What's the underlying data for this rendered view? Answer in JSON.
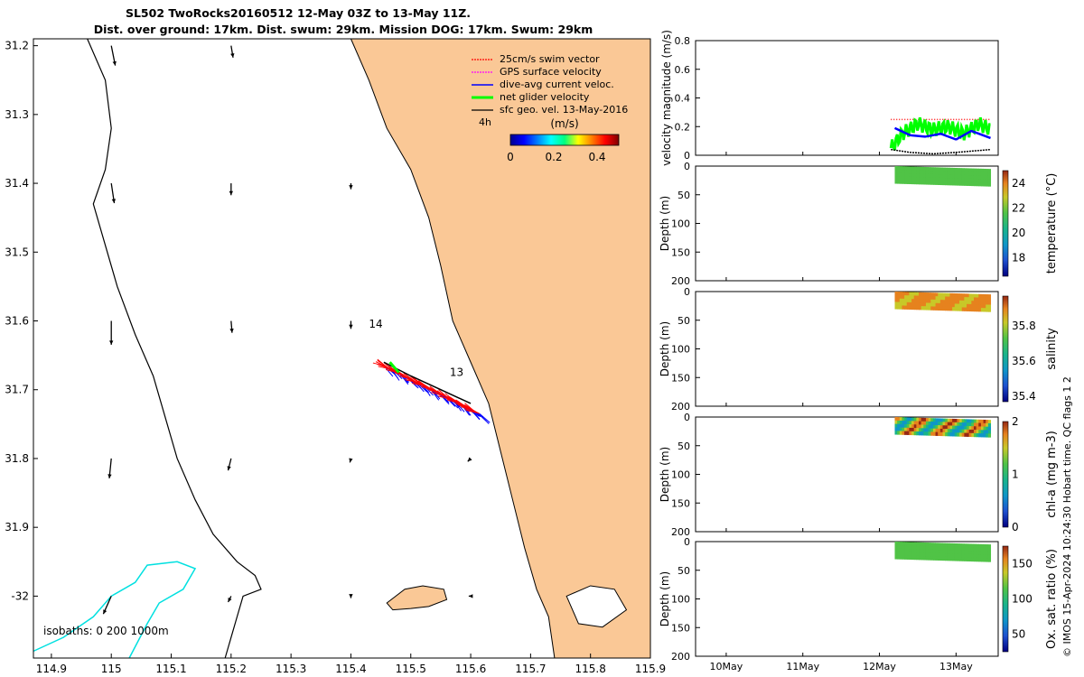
{
  "title": {
    "line1": "SL502 TwoRocks20160512 12-May 03Z to 13-May 11Z.",
    "line2": "Dist. over ground: 17km. Dist. swum: 29km. Mission DOG: 17km. Swum: 29km"
  },
  "colors": {
    "land": "#fac896",
    "swim": "#ff0000",
    "gps": "#ff00ff",
    "dive": "#0000ff",
    "net": "#00ff00",
    "sfc": "#000000",
    "isobath200": "#000000",
    "isobath1000": "#00e0e0"
  },
  "chart_data": [
    {
      "id": "map",
      "type": "scatter",
      "x_ticks": [
        "114.9",
        "115",
        "115.1",
        "115.2",
        "115.3",
        "115.4",
        "115.5",
        "115.6",
        "115.7",
        "115.8",
        "115.9"
      ],
      "y_ticks": [
        "31.2",
        "31.3",
        "31.4",
        "31.5",
        "31.6",
        "31.7",
        "31.8",
        "31.9",
        "-32"
      ],
      "xlim": [
        114.87,
        115.9
      ],
      "ylim": [
        31.19,
        32.09
      ],
      "legend": [
        {
          "label": "25cm/s swim vector",
          "color": "#ff0000"
        },
        {
          "label": "GPS surface velocity",
          "color": "#ff00ff"
        },
        {
          "label": "dive-avg current veloc.",
          "color": "#0000ff"
        },
        {
          "label": "net glider velocity",
          "color": "#00ff00"
        },
        {
          "label": "sfc geo. vel. 13-May-2016",
          "color": "#000000"
        }
      ],
      "legend_placement": "top-right",
      "speed_scale": {
        "label": "(m/s)",
        "ticks": [
          "0",
          "0.2",
          "0.4"
        ],
        "range": [
          0,
          0.5
        ],
        "note": "4h"
      },
      "annotations": [
        {
          "text": "14",
          "lon": 115.43,
          "lat": 31.61
        },
        {
          "text": "13",
          "lon": 115.565,
          "lat": 31.68
        }
      ],
      "isobath_label": "isobaths: 0   200  1000m",
      "sfc_vectors": [
        {
          "lon": 115.0,
          "lat": 31.2,
          "u": 0.2,
          "v": 1.0
        },
        {
          "lon": 115.2,
          "lat": 31.2,
          "u": 0.1,
          "v": 0.6
        },
        {
          "lon": 115.0,
          "lat": 31.4,
          "u": 0.15,
          "v": 1.0
        },
        {
          "lon": 115.2,
          "lat": 31.4,
          "u": 0.0,
          "v": 0.6
        },
        {
          "lon": 115.4,
          "lat": 31.4,
          "u": 0.0,
          "v": 0.3
        },
        {
          "lon": 115.0,
          "lat": 31.6,
          "u": 0.0,
          "v": 1.2
        },
        {
          "lon": 115.2,
          "lat": 31.6,
          "u": 0.05,
          "v": 0.6
        },
        {
          "lon": 115.4,
          "lat": 31.6,
          "u": 0.0,
          "v": 0.4
        },
        {
          "lon": 115.0,
          "lat": 31.8,
          "u": -0.1,
          "v": 1.0
        },
        {
          "lon": 115.2,
          "lat": 31.8,
          "u": -0.15,
          "v": 0.6
        },
        {
          "lon": 115.4,
          "lat": 31.8,
          "u": -0.05,
          "v": 0.2
        },
        {
          "lon": 115.6,
          "lat": 31.8,
          "u": -0.15,
          "v": 0.15
        },
        {
          "lon": 115.0,
          "lat": 32.0,
          "u": -0.4,
          "v": 0.9
        },
        {
          "lon": 115.2,
          "lat": 32.0,
          "u": -0.15,
          "v": 0.3
        },
        {
          "lon": 115.4,
          "lat": 32.0,
          "u": 0.0,
          "v": 0.1
        },
        {
          "lon": 115.6,
          "lat": 32.0,
          "u": -0.1,
          "v": 0.0
        }
      ]
    },
    {
      "id": "velocity",
      "type": "line",
      "ylabel": "velocity magnitude (m/s)",
      "y_ticks": [
        "0",
        "0.2",
        "0.4",
        "0.6",
        "0.8"
      ],
      "ylim": [
        0,
        0.8
      ],
      "series": [
        {
          "color": "#ff0000",
          "x": [
            12.15,
            13.45
          ],
          "y": [
            0.25,
            0.25
          ]
        },
        {
          "color": "#00ff00",
          "x": [
            12.15,
            12.3,
            12.5,
            12.7,
            12.9,
            13.1,
            13.3,
            13.45
          ],
          "y": [
            0.05,
            0.15,
            0.22,
            0.18,
            0.2,
            0.15,
            0.22,
            0.18
          ]
        },
        {
          "color": "#0000ff",
          "x": [
            12.2,
            12.4,
            12.6,
            12.8,
            13.0,
            13.2,
            13.45
          ],
          "y": [
            0.19,
            0.14,
            0.13,
            0.15,
            0.11,
            0.17,
            0.12
          ]
        },
        {
          "color": "#000000",
          "x": [
            12.15,
            12.4,
            12.7,
            13.0,
            13.45
          ],
          "y": [
            0.04,
            0.02,
            0.01,
            0.02,
            0.04
          ]
        }
      ]
    },
    {
      "id": "temperature",
      "type": "heatmap",
      "ylabel": "Depth (m)",
      "y_ticks": [
        "0",
        "50",
        "100",
        "150",
        "200"
      ],
      "ylim": [
        200,
        0
      ],
      "colorbar": {
        "label": "temperature (°C)",
        "ticks": [
          "24",
          "22",
          "20",
          "18"
        ],
        "range": [
          16.5,
          25
        ]
      },
      "xrange": [
        12.2,
        13.45
      ],
      "depth_range": [
        0,
        30
      ],
      "value_range": [
        21.2,
        21.8
      ]
    },
    {
      "id": "salinity",
      "type": "heatmap",
      "ylabel": "Depth (m)",
      "y_ticks": [
        "0",
        "50",
        "100",
        "150",
        "200"
      ],
      "ylim": [
        200,
        0
      ],
      "colorbar": {
        "label": "salinity",
        "ticks": [
          "35.8",
          "35.6",
          "35.4"
        ],
        "range": [
          35.37,
          35.97
        ]
      },
      "xrange": [
        12.2,
        13.45
      ],
      "depth_range": [
        0,
        30
      ],
      "value_range": [
        35.82,
        35.9
      ]
    },
    {
      "id": "chla",
      "type": "heatmap",
      "ylabel": "Depth (m)",
      "y_ticks": [
        "0",
        "50",
        "100",
        "150",
        "200"
      ],
      "ylim": [
        200,
        0
      ],
      "colorbar": {
        "label": "chl-a (mg m-3)",
        "ticks": [
          "2",
          "1",
          "0"
        ],
        "range": [
          0,
          2
        ]
      },
      "xrange": [
        12.2,
        13.45
      ],
      "depth_range": [
        0,
        30
      ],
      "value_range": [
        0.6,
        1.9
      ]
    },
    {
      "id": "oxygen",
      "type": "heatmap",
      "ylabel": "Depth (m)",
      "y_ticks": [
        "0",
        "50",
        "100",
        "150",
        "200"
      ],
      "ylim": [
        200,
        0
      ],
      "colorbar": {
        "label": "Ox. sat. ratio (%)",
        "ticks": [
          "150",
          "100",
          "50"
        ],
        "range": [
          25,
          175
        ]
      },
      "xrange": [
        12.2,
        13.45
      ],
      "depth_range": [
        0,
        30
      ],
      "value_range": [
        100,
        115
      ],
      "x_ticks": [
        "10May",
        "11May",
        "12May",
        "13May"
      ],
      "xlim": [
        9.6,
        13.55
      ]
    }
  ],
  "side_note": "© IMOS 15-Apr-2024 10:24:30 Hobart time. QC flags 1  2"
}
